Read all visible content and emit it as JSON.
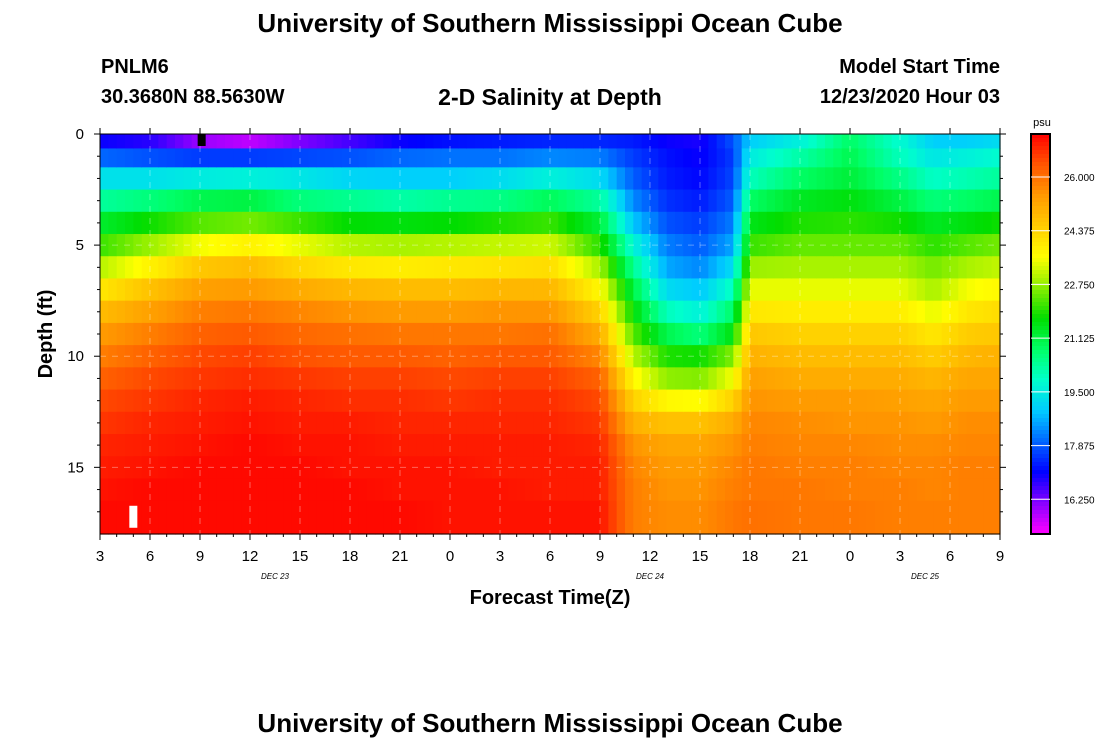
{
  "header": {
    "title": "University of Southern Mississippi Ocean Cube",
    "station_id": "PNLM6",
    "coordinates": "30.3680N 88.5630W",
    "model_start_label": "Model Start Time",
    "model_start_value": "12/23/2020 Hour 03"
  },
  "footer": {
    "title": "University of Southern Mississippi Ocean Cube"
  },
  "chart_data": {
    "type": "heatmap",
    "title": "2-D Salinity at Depth",
    "xlabel": "Forecast Time(Z)",
    "ylabel": "Depth (ft)",
    "x_tick_labels": [
      "3",
      "6",
      "9",
      "12",
      "15",
      "18",
      "21",
      "0",
      "3",
      "6",
      "9",
      "12",
      "15",
      "18",
      "21",
      "0",
      "3",
      "6",
      "9"
    ],
    "x_range_hours": [
      0,
      54
    ],
    "date_labels": [
      {
        "text": "DEC 23",
        "hour": 10.5
      },
      {
        "text": "DEC 24",
        "hour": 33
      },
      {
        "text": "DEC 25",
        "hour": 49.5
      }
    ],
    "y_ticks": [
      0,
      5,
      10,
      15
    ],
    "y_tick_labels": [
      "0",
      "5",
      "10",
      "15"
    ],
    "ylim": [
      0,
      18
    ],
    "colorbar": {
      "unit": "psu",
      "ticks": [
        16.25,
        17.875,
        19.5,
        21.125,
        22.75,
        24.375,
        26.0
      ],
      "tick_labels": [
        "16.250",
        "17.875",
        "19.500",
        "21.125",
        "22.750",
        "24.375",
        "26.000"
      ],
      "range": [
        15.2,
        27.3
      ],
      "colors": [
        "#ff00ff",
        "#8800ff",
        "#0000ff",
        "#0066ff",
        "#00ccff",
        "#00ffcc",
        "#00ff66",
        "#00dd00",
        "#88ee00",
        "#ffff00",
        "#ffcc00",
        "#ff9900",
        "#ff5500",
        "#ff0000"
      ]
    },
    "grid": true,
    "depth_levels": [
      0.3,
      1.0,
      2.0,
      3.0,
      4.0,
      5.0,
      6.0,
      7.0,
      8.0,
      9.0,
      10.0,
      11.0,
      12.0,
      13.0,
      14.0,
      15.0,
      16.0,
      17.0
    ],
    "series_description": "Salinity (psu) by depth over forecast hours",
    "series": [
      {
        "hour": 0,
        "values": [
          17.0,
          18.0,
          19.3,
          20.3,
          21.3,
          22.1,
          23.0,
          24.0,
          24.8,
          25.4,
          25.8,
          26.2,
          26.5,
          26.7,
          26.9,
          27.0,
          27.1,
          27.2
        ]
      },
      {
        "hour": 3,
        "values": [
          16.8,
          17.8,
          19.3,
          20.6,
          21.8,
          22.8,
          23.8,
          24.7,
          25.3,
          25.8,
          26.2,
          26.5,
          26.7,
          26.9,
          27.0,
          27.1,
          27.2,
          27.2
        ]
      },
      {
        "hour": 6,
        "values": [
          16.0,
          17.6,
          19.5,
          21.0,
          22.3,
          23.5,
          24.6,
          25.3,
          25.8,
          26.2,
          26.5,
          26.7,
          26.9,
          27.0,
          27.1,
          27.2,
          27.2,
          27.2
        ]
      },
      {
        "hour": 9,
        "values": [
          15.7,
          17.6,
          19.6,
          21.1,
          22.5,
          23.8,
          24.8,
          25.4,
          25.9,
          26.3,
          26.6,
          26.8,
          27.0,
          27.1,
          27.2,
          27.2,
          27.2,
          27.2
        ]
      },
      {
        "hour": 12,
        "values": [
          16.2,
          17.7,
          19.4,
          20.6,
          22.1,
          23.4,
          24.3,
          25.1,
          25.7,
          26.1,
          26.4,
          26.7,
          26.9,
          27.0,
          27.1,
          27.2,
          27.2,
          27.2
        ]
      },
      {
        "hour": 15,
        "values": [
          16.6,
          17.8,
          19.1,
          20.4,
          21.7,
          23.0,
          24.0,
          24.9,
          25.5,
          26.0,
          26.3,
          26.6,
          26.8,
          27.0,
          27.1,
          27.1,
          27.2,
          27.2
        ]
      },
      {
        "hour": 18,
        "values": [
          17.0,
          18.0,
          19.0,
          20.2,
          21.6,
          22.9,
          23.9,
          24.8,
          25.4,
          25.9,
          26.3,
          26.6,
          26.8,
          26.9,
          27.0,
          27.1,
          27.1,
          27.2
        ]
      },
      {
        "hour": 21,
        "values": [
          17.2,
          18.1,
          19.0,
          20.4,
          21.7,
          23.0,
          24.0,
          24.8,
          25.4,
          25.9,
          26.2,
          26.5,
          26.7,
          26.9,
          27.0,
          27.1,
          27.1,
          27.1
        ]
      },
      {
        "hour": 24,
        "values": [
          17.3,
          18.1,
          19.2,
          20.5,
          21.9,
          23.1,
          24.1,
          24.9,
          25.5,
          25.9,
          26.3,
          26.6,
          26.8,
          26.9,
          27.0,
          27.0,
          27.1,
          27.1
        ]
      },
      {
        "hour": 27,
        "values": [
          17.4,
          18.3,
          19.6,
          20.9,
          22.1,
          23.2,
          24.2,
          24.9,
          25.5,
          26.0,
          26.3,
          26.6,
          26.8,
          26.9,
          27.0,
          27.0,
          27.0,
          27.1
        ]
      },
      {
        "hour": 30,
        "values": [
          17.4,
          18.2,
          19.2,
          20.3,
          21.2,
          22.0,
          22.9,
          23.7,
          24.4,
          25.1,
          25.7,
          26.2,
          26.5,
          26.7,
          26.9,
          27.0,
          27.0,
          27.1
        ]
      },
      {
        "hour": 32,
        "values": [
          17.3,
          17.6,
          17.9,
          18.3,
          18.9,
          19.7,
          20.4,
          21.1,
          21.7,
          22.3,
          23.0,
          23.7,
          24.4,
          25.0,
          25.5,
          25.7,
          25.8,
          25.8
        ]
      },
      {
        "hour": 34,
        "values": [
          17.0,
          17.2,
          17.3,
          17.5,
          17.8,
          18.2,
          18.6,
          19.2,
          20.0,
          21.0,
          21.9,
          22.7,
          23.7,
          24.7,
          25.2,
          25.4,
          25.5,
          25.6
        ]
      },
      {
        "hour": 36,
        "values": [
          16.9,
          17.0,
          17.1,
          17.3,
          17.6,
          17.9,
          18.3,
          18.9,
          19.6,
          20.6,
          21.8,
          22.6,
          23.6,
          24.7,
          25.2,
          25.4,
          25.5,
          25.6
        ]
      },
      {
        "hour": 38,
        "values": [
          17.8,
          17.6,
          17.7,
          17.9,
          18.2,
          18.6,
          19.2,
          20.0,
          20.8,
          21.6,
          22.6,
          23.5,
          24.4,
          25.1,
          25.5,
          25.7,
          25.8,
          25.9
        ]
      },
      {
        "hour": 39,
        "values": [
          19.0,
          19.5,
          20.0,
          20.8,
          21.5,
          22.1,
          22.8,
          23.4,
          24.0,
          24.6,
          25.0,
          25.3,
          25.5,
          25.7,
          25.8,
          25.9,
          25.9,
          26.0
        ]
      },
      {
        "hour": 42,
        "values": [
          19.6,
          20.2,
          20.8,
          21.4,
          21.9,
          22.4,
          22.9,
          23.4,
          23.9,
          24.4,
          24.8,
          25.1,
          25.4,
          25.6,
          25.7,
          25.8,
          25.9,
          25.9
        ]
      },
      {
        "hour": 45,
        "values": [
          20.8,
          21.0,
          21.2,
          21.6,
          22.0,
          22.4,
          22.9,
          23.4,
          23.9,
          24.4,
          24.8,
          25.1,
          25.4,
          25.5,
          25.7,
          25.8,
          25.8,
          25.9
        ]
      },
      {
        "hour": 48,
        "values": [
          19.8,
          20.0,
          20.5,
          21.1,
          21.8,
          22.4,
          22.9,
          23.4,
          23.9,
          24.4,
          24.8,
          25.1,
          25.3,
          25.5,
          25.6,
          25.7,
          25.8,
          25.8
        ]
      },
      {
        "hour": 50,
        "values": [
          19.0,
          19.4,
          19.9,
          20.6,
          21.4,
          22.0,
          22.5,
          22.9,
          23.4,
          24.0,
          24.5,
          24.9,
          25.2,
          25.4,
          25.6,
          25.7,
          25.7,
          25.8
        ]
      },
      {
        "hour": 52,
        "values": [
          19.0,
          19.6,
          20.1,
          20.8,
          21.6,
          22.3,
          22.9,
          23.5,
          24.0,
          24.5,
          24.9,
          25.2,
          25.4,
          25.6,
          25.7,
          25.8,
          25.8,
          25.8
        ]
      },
      {
        "hour": 54,
        "values": [
          19.2,
          19.8,
          20.3,
          21.0,
          21.8,
          22.5,
          23.1,
          23.7,
          24.2,
          24.6,
          25.0,
          25.2,
          25.4,
          25.6,
          25.7,
          25.8,
          25.8,
          25.8
        ]
      }
    ],
    "markers": [
      {
        "name": "surface-marker",
        "hour": 6.1,
        "depth": 0.3,
        "color": "#000000"
      },
      {
        "name": "depth-marker",
        "hour": 2.0,
        "depth": 17.0,
        "color": "#ffffff"
      }
    ]
  }
}
